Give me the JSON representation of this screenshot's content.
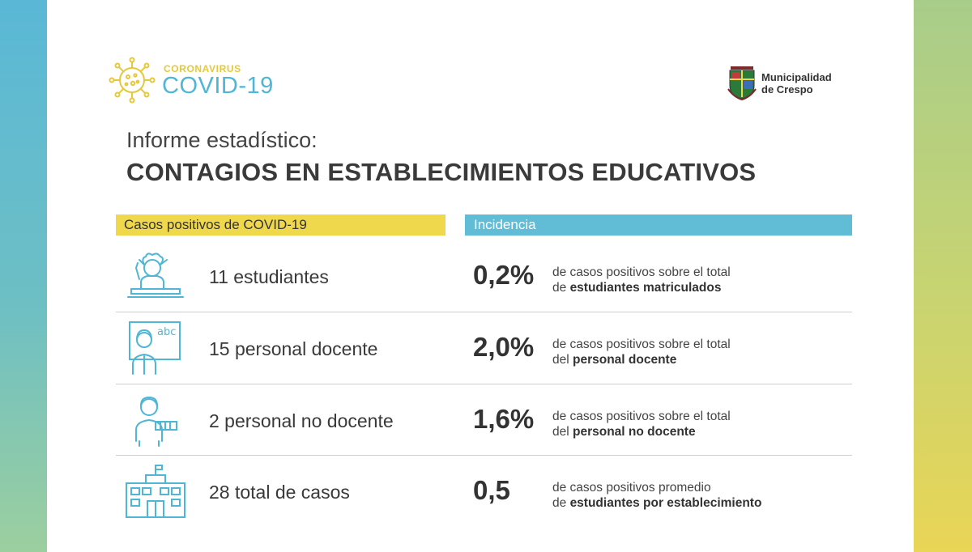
{
  "header": {
    "brand_small": "CORONAVIRUS",
    "brand_big": "COVID-19",
    "municipality_line1": "Municipalidad",
    "municipality_line2": "de Crespo"
  },
  "report": {
    "subtitle": "Informe estadístico:",
    "title": "CONTAGIOS EN ESTABLECIMIENTOS EDUCATIVOS"
  },
  "columns": {
    "left": "Casos positivos de COVID-19",
    "right": "Incidencia"
  },
  "rows": [
    {
      "icon": "student-icon",
      "count": "11 estudiantes",
      "value": "0,2%",
      "desc_line1": "de casos positivos sobre el total",
      "desc_prefix": "de ",
      "desc_bold": "estudiantes matriculados"
    },
    {
      "icon": "teacher-icon",
      "count": "15 personal docente",
      "value": "2,0%",
      "desc_line1": "de casos positivos sobre el total",
      "desc_prefix": "del ",
      "desc_bold": "personal docente"
    },
    {
      "icon": "staff-icon",
      "count": "2 personal no docente",
      "value": "1,6%",
      "desc_line1": "de casos positivos sobre el total",
      "desc_prefix": "del ",
      "desc_bold": "personal no docente"
    },
    {
      "icon": "school-building-icon",
      "count": "28 total de casos",
      "value": "0,5",
      "desc_line1": "de casos positivos promedio",
      "desc_prefix": "de ",
      "desc_bold": "estudiantes por establecimiento"
    }
  ],
  "colors": {
    "blue": "#4fb6d6",
    "yellow": "#f0d84d",
    "text": "#3a3a3a"
  }
}
